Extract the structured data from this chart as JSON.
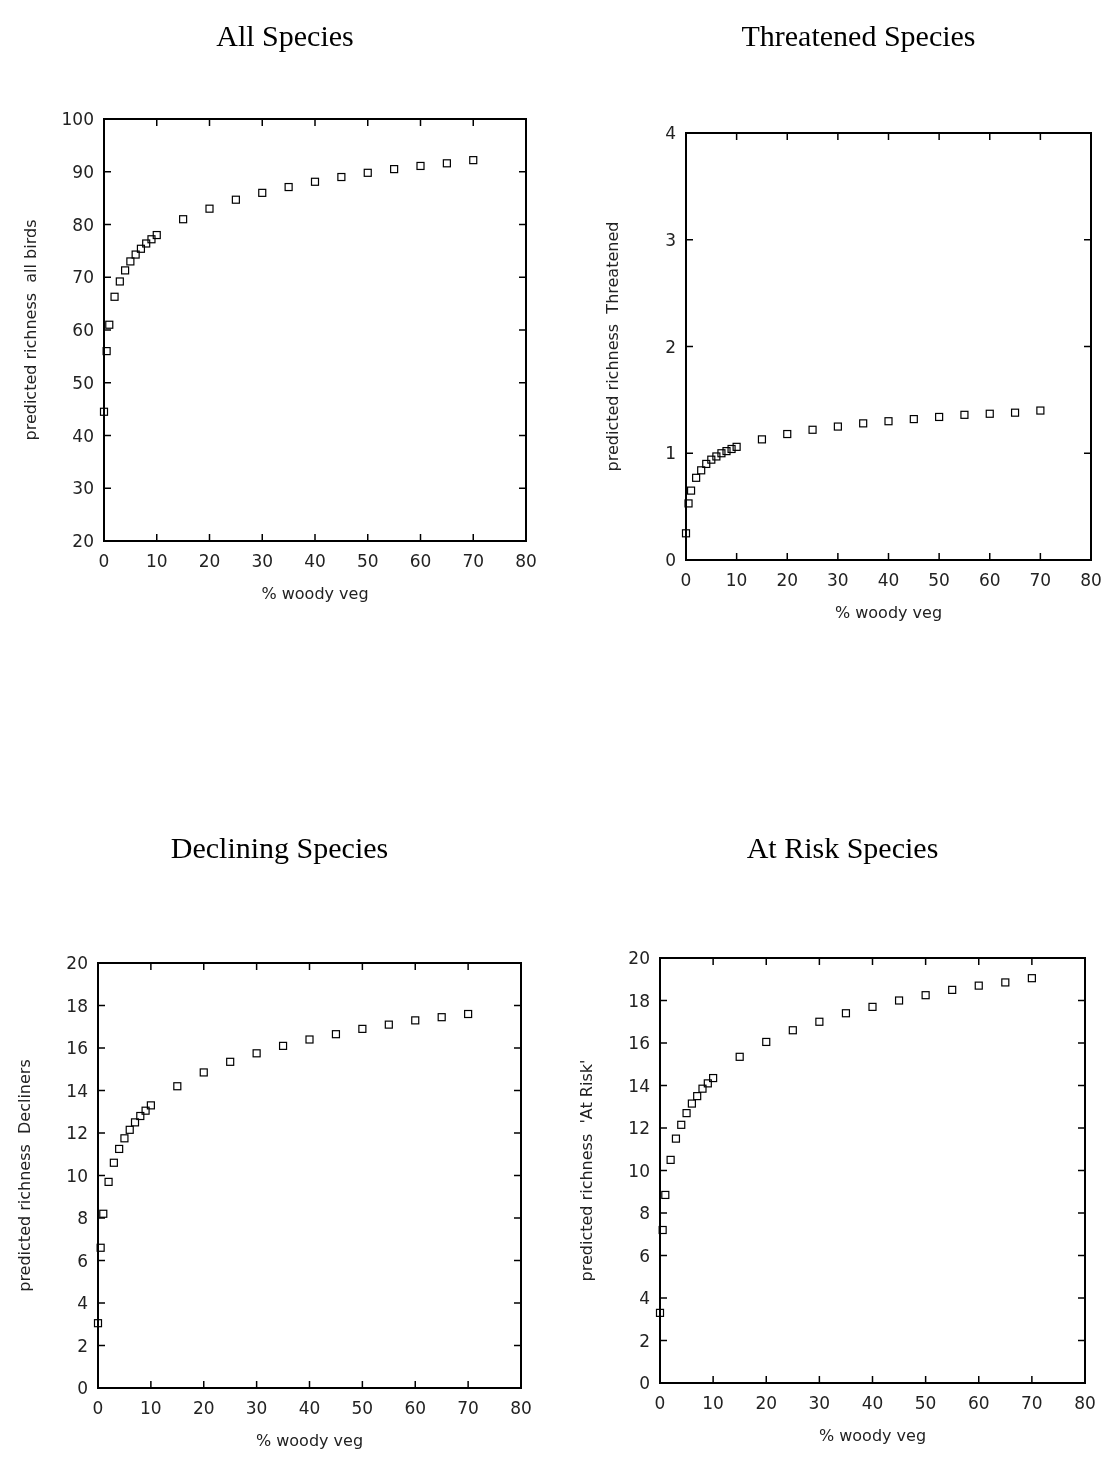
{
  "chart_data": [
    {
      "type": "scatter",
      "title": "All Species",
      "xlabel": "% woody veg",
      "ylabel": "predicted richness  all birds",
      "marker": "square",
      "grid": false,
      "x": [
        0,
        0.5,
        1,
        2,
        3,
        4,
        5,
        6,
        7,
        8,
        9,
        10,
        15,
        20,
        25,
        30,
        35,
        40,
        45,
        50,
        55,
        60,
        65,
        70
      ],
      "series": [
        {
          "color": "#000000",
          "values": [
            44.5,
            56,
            61,
            66.3,
            69.2,
            71.3,
            73,
            74.3,
            75.4,
            76.4,
            77.2,
            78,
            81,
            83,
            84.7,
            86,
            87.1,
            88.1,
            89,
            89.8,
            90.5,
            91.1,
            91.6,
            92.2
          ]
        }
      ],
      "xlim": [
        0,
        80
      ],
      "xticks": [
        0,
        10,
        20,
        30,
        40,
        50,
        60,
        70,
        80
      ],
      "ylim": [
        20,
        100
      ],
      "yticks": [
        20,
        30,
        40,
        50,
        60,
        70,
        80,
        90,
        100
      ]
    },
    {
      "type": "scatter",
      "title": "Threatened Species",
      "xlabel": "% woody veg",
      "ylabel": "predicted richness  Threatened",
      "marker": "square",
      "grid": false,
      "x": [
        0,
        0.5,
        1,
        2,
        3,
        4,
        5,
        6,
        7,
        8,
        9,
        10,
        15,
        20,
        25,
        30,
        35,
        40,
        45,
        50,
        55,
        60,
        65,
        70
      ],
      "series": [
        {
          "color": "#000000",
          "values": [
            0.25,
            0.53,
            0.65,
            0.77,
            0.84,
            0.9,
            0.94,
            0.97,
            1.0,
            1.02,
            1.04,
            1.06,
            1.13,
            1.18,
            1.22,
            1.25,
            1.28,
            1.3,
            1.32,
            1.34,
            1.36,
            1.37,
            1.38,
            1.4
          ]
        }
      ],
      "xlim": [
        0,
        80
      ],
      "xticks": [
        0,
        10,
        20,
        30,
        40,
        50,
        60,
        70,
        80
      ],
      "ylim": [
        0,
        4
      ],
      "yticks": [
        0,
        1,
        2,
        3,
        4
      ]
    },
    {
      "type": "scatter",
      "title": "Declining Species",
      "xlabel": "% woody veg",
      "ylabel": "predicted richness  Decliners",
      "marker": "square",
      "grid": false,
      "x": [
        0,
        0.5,
        1,
        2,
        3,
        4,
        5,
        6,
        7,
        8,
        9,
        10,
        15,
        20,
        25,
        30,
        35,
        40,
        45,
        50,
        55,
        60,
        65,
        70
      ],
      "series": [
        {
          "color": "#000000",
          "values": [
            3.05,
            6.6,
            8.2,
            9.7,
            10.6,
            11.25,
            11.75,
            12.15,
            12.5,
            12.8,
            13.05,
            13.3,
            14.2,
            14.85,
            15.35,
            15.75,
            16.1,
            16.4,
            16.65,
            16.9,
            17.1,
            17.3,
            17.45,
            17.6
          ]
        }
      ],
      "xlim": [
        0,
        80
      ],
      "xticks": [
        0,
        10,
        20,
        30,
        40,
        50,
        60,
        70,
        80
      ],
      "ylim": [
        0,
        20
      ],
      "yticks": [
        0,
        2,
        4,
        6,
        8,
        10,
        12,
        14,
        16,
        18,
        20
      ]
    },
    {
      "type": "scatter",
      "title": "At Risk Species",
      "xlabel": "% woody veg",
      "ylabel": "predicted richness  'At Risk'",
      "marker": "square",
      "grid": false,
      "x": [
        0,
        0.5,
        1,
        2,
        3,
        4,
        5,
        6,
        7,
        8,
        9,
        10,
        15,
        20,
        25,
        30,
        35,
        40,
        45,
        50,
        55,
        60,
        65,
        70
      ],
      "series": [
        {
          "color": "#000000",
          "values": [
            3.3,
            7.2,
            8.85,
            10.5,
            11.5,
            12.15,
            12.7,
            13.15,
            13.5,
            13.85,
            14.1,
            14.35,
            15.35,
            16.05,
            16.6,
            17.0,
            17.4,
            17.7,
            18.0,
            18.25,
            18.5,
            18.7,
            18.85,
            19.05
          ]
        }
      ],
      "xlim": [
        0,
        80
      ],
      "xticks": [
        0,
        10,
        20,
        30,
        40,
        50,
        60,
        70,
        80
      ],
      "ylim": [
        0,
        20
      ],
      "yticks": [
        0,
        2,
        4,
        6,
        8,
        10,
        12,
        14,
        16,
        18,
        20
      ]
    }
  ]
}
